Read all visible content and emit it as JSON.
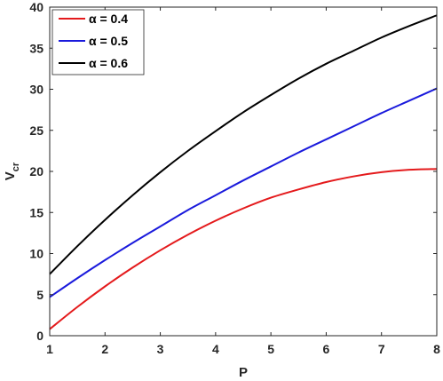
{
  "chart_data": {
    "type": "line",
    "xlabel": "P",
    "ylabel": "V",
    "ylabel_sub": "cr",
    "xlim": [
      1,
      8
    ],
    "ylim": [
      0,
      40
    ],
    "xticks": [
      "1",
      "2",
      "3",
      "4",
      "5",
      "6",
      "7",
      "8"
    ],
    "yticks": [
      "0",
      "5",
      "10",
      "15",
      "20",
      "25",
      "30",
      "35",
      "40"
    ],
    "grid": false,
    "legend_position": "top-left",
    "x": [
      1,
      1.5,
      2,
      2.5,
      3,
      3.5,
      4,
      4.5,
      5,
      5.5,
      6,
      6.5,
      7,
      7.5,
      8
    ],
    "series": [
      {
        "name": "α = 0.4",
        "color": "#e41a1c",
        "values": [
          0.8,
          3.5,
          6.0,
          8.3,
          10.4,
          12.3,
          14.0,
          15.5,
          16.8,
          17.8,
          18.7,
          19.4,
          19.9,
          20.2,
          20.3
        ]
      },
      {
        "name": "α = 0.5",
        "color": "#1a1adc",
        "values": [
          4.7,
          7.0,
          9.2,
          11.3,
          13.3,
          15.3,
          17.1,
          18.9,
          20.6,
          22.3,
          23.9,
          25.5,
          27.1,
          28.6,
          30.1
        ]
      },
      {
        "name": "α = 0.6",
        "color": "#000000",
        "values": [
          7.5,
          10.9,
          14.1,
          17.1,
          19.9,
          22.5,
          24.9,
          27.2,
          29.3,
          31.3,
          33.1,
          34.7,
          36.3,
          37.7,
          39.0
        ]
      }
    ]
  }
}
